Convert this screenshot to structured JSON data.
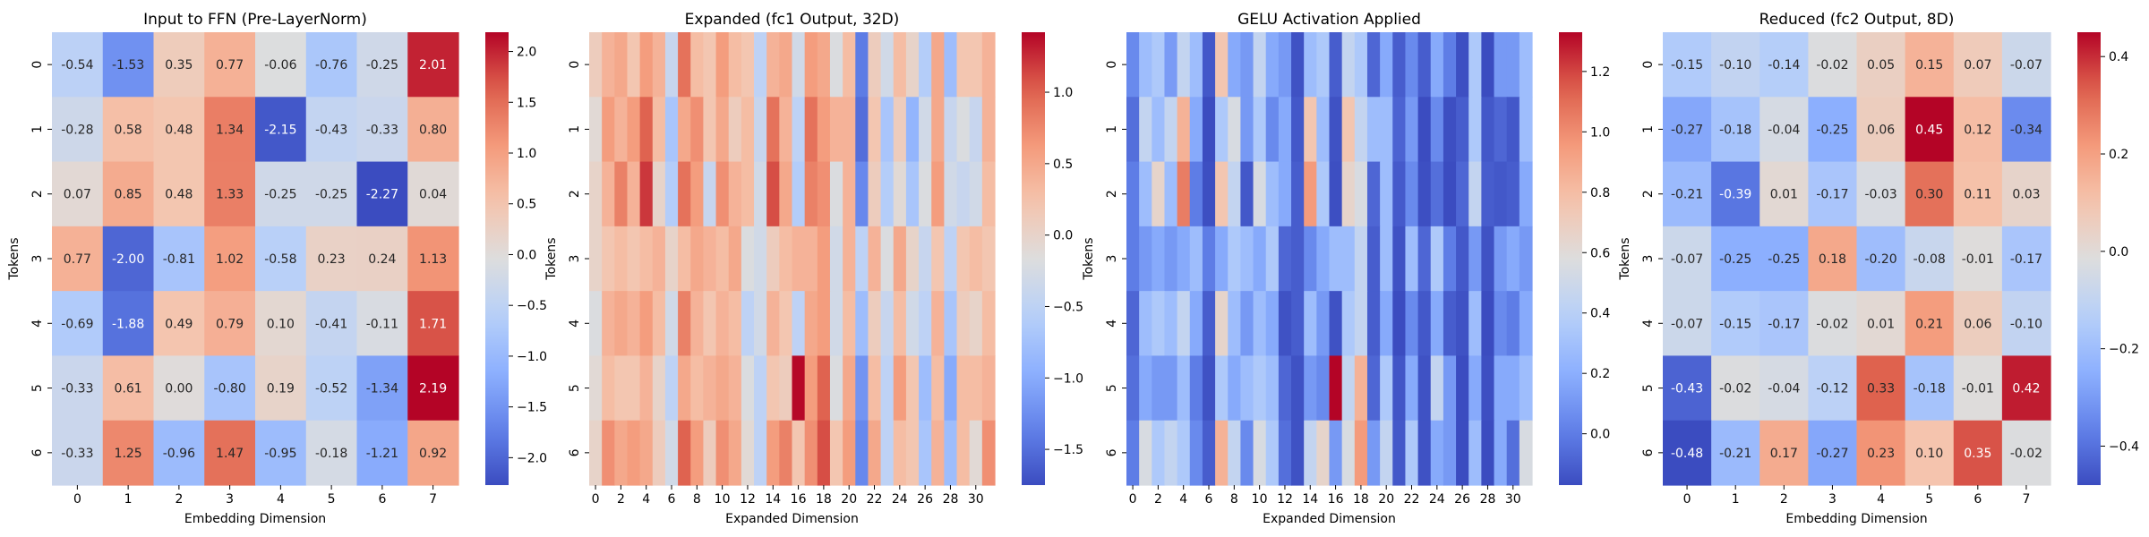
{
  "figure": {
    "background": "#ffffff"
  },
  "chart_data": [
    {
      "type": "heatmap",
      "title": "Input to FFN (Pre-LayerNorm)",
      "xlabel": "Embedding Dimension",
      "ylabel": "Tokens",
      "x_ticks": [
        "0",
        "1",
        "2",
        "3",
        "4",
        "5",
        "6",
        "7"
      ],
      "y_ticks": [
        "0",
        "1",
        "2",
        "3",
        "4",
        "5",
        "6"
      ],
      "annotated": true,
      "vmin": -2.27,
      "vmax": 2.19,
      "colorbar_ticks": [
        "2.0",
        "1.5",
        "1.0",
        "0.5",
        "0.0",
        "−0.5",
        "−1.0",
        "−1.5",
        "−2.0"
      ],
      "values": [
        [
          -0.54,
          -1.53,
          0.35,
          0.77,
          -0.06,
          -0.76,
          -0.25,
          2.01
        ],
        [
          -0.28,
          0.58,
          0.48,
          1.34,
          -2.15,
          -0.43,
          -0.33,
          0.8
        ],
        [
          0.07,
          0.85,
          0.48,
          1.33,
          -0.25,
          -0.25,
          -2.27,
          0.04
        ],
        [
          0.77,
          -2.0,
          -0.81,
          1.02,
          -0.58,
          0.23,
          0.24,
          1.13
        ],
        [
          -0.69,
          -1.88,
          0.49,
          0.79,
          0.1,
          -0.41,
          -0.11,
          1.71
        ],
        [
          -0.33,
          0.61,
          0.0,
          -0.8,
          0.19,
          -0.52,
          -1.34,
          2.19
        ],
        [
          -0.33,
          1.25,
          -0.96,
          1.47,
          -0.95,
          -0.18,
          -1.21,
          0.92
        ]
      ]
    },
    {
      "type": "heatmap",
      "title": "Expanded (fc1 Output, 32D)",
      "xlabel": "Expanded Dimension",
      "ylabel": "Tokens",
      "x_ticks": [
        "0",
        "2",
        "4",
        "6",
        "8",
        "10",
        "12",
        "14",
        "16",
        "18",
        "20",
        "22",
        "24",
        "26",
        "28",
        "30"
      ],
      "y_ticks": [
        "0",
        "1",
        "2",
        "3",
        "4",
        "5",
        "6"
      ],
      "annotated": false,
      "vmin": -1.75,
      "vmax": 1.42,
      "colorbar_ticks": [
        "1.0",
        "0.5",
        "0.0",
        "−0.5",
        "−1.0",
        "−1.5"
      ],
      "values": [
        [
          0.1,
          0.4,
          0.5,
          0.2,
          0.6,
          0.4,
          -0.4,
          0.9,
          0.3,
          0.2,
          0.6,
          0.3,
          0.2,
          -0.5,
          0.4,
          0.5,
          -0.3,
          0.6,
          0.5,
          -0.2,
          0.3,
          -1.4,
          0.1,
          -0.3,
          0.3,
          0.0,
          -0.6,
          0.5,
          -0.8,
          0.2,
          0.2,
          0.4
        ],
        [
          -0.1,
          0.6,
          0.4,
          0.6,
          1.0,
          0.3,
          -0.7,
          0.5,
          0.7,
          0.2,
          0.5,
          0.1,
          0.3,
          -0.4,
          0.9,
          0.4,
          -0.5,
          0.9,
          0.6,
          0.4,
          0.4,
          -1.5,
          0.2,
          -0.7,
          0.1,
          -0.9,
          -0.3,
          0.5,
          -0.4,
          -0.2,
          -0.4,
          0.4
        ],
        [
          0.0,
          0.4,
          0.8,
          0.4,
          1.2,
          0.0,
          -0.6,
          0.9,
          0.6,
          -0.4,
          0.7,
          0.4,
          0.3,
          -0.3,
          1.1,
          0.5,
          -0.6,
          0.8,
          0.7,
          -0.2,
          0.4,
          -1.3,
          0.1,
          -0.6,
          -0.1,
          -0.7,
          -0.2,
          0.6,
          -0.3,
          -0.4,
          -0.3,
          0.3
        ],
        [
          0.0,
          0.2,
          0.3,
          0.2,
          0.3,
          0.4,
          0.0,
          0.3,
          0.5,
          0.4,
          0.3,
          0.5,
          -0.2,
          -0.3,
          0.1,
          0.3,
          0.4,
          0.4,
          0.6,
          -0.3,
          0.4,
          -0.5,
          0.4,
          -0.2,
          0.5,
          0.0,
          -0.4,
          0.2,
          -0.5,
          0.2,
          0.3,
          0.2
        ],
        [
          -0.2,
          0.4,
          0.5,
          0.4,
          0.6,
          0.3,
          -0.3,
          0.8,
          0.4,
          0.2,
          0.4,
          0.3,
          -0.5,
          -0.3,
          0.4,
          0.2,
          -0.5,
          0.5,
          0.6,
          -0.3,
          0.3,
          -0.8,
          0.1,
          -0.4,
          0.3,
          -0.3,
          -0.5,
          0.4,
          -0.7,
          0.1,
          0.0,
          0.3
        ],
        [
          -0.1,
          0.3,
          0.2,
          0.2,
          0.4,
          0.0,
          -0.5,
          0.5,
          0.3,
          0.4,
          0.5,
          0.4,
          -0.2,
          -0.5,
          0.2,
          0.1,
          1.4,
          0.6,
          1.0,
          -0.2,
          0.5,
          -1.2,
          0.3,
          -0.5,
          0.6,
          0.2,
          -0.8,
          0.3,
          -1.0,
          0.3,
          0.3,
          0.4
        ],
        [
          0.0,
          0.7,
          0.5,
          0.6,
          0.5,
          0.1,
          -0.3,
          1.0,
          0.6,
          0.1,
          0.7,
          0.5,
          -0.1,
          -0.5,
          0.6,
          0.8,
          0.2,
          0.7,
          1.1,
          0.2,
          0.6,
          -1.3,
          0.5,
          -0.5,
          0.3,
          0.2,
          -0.7,
          0.4,
          -0.8,
          0.3,
          -0.1,
          0.7
        ]
      ]
    },
    {
      "type": "heatmap",
      "title": "GELU Activation Applied",
      "xlabel": "Expanded Dimension",
      "ylabel": "Tokens",
      "x_ticks": [
        "0",
        "2",
        "4",
        "6",
        "8",
        "10",
        "12",
        "14",
        "16",
        "18",
        "20",
        "22",
        "24",
        "26",
        "28",
        "30"
      ],
      "y_ticks": [
        "0",
        "1",
        "2",
        "3",
        "4",
        "5",
        "6"
      ],
      "annotated": false,
      "vmin": -0.17,
      "vmax": 1.33,
      "colorbar_ticks": [
        "1.2",
        "1.0",
        "0.8",
        "0.6",
        "0.4",
        "0.2",
        "0.0"
      ],
      "values": [
        [
          0.05,
          0.28,
          0.35,
          0.12,
          0.45,
          0.28,
          -0.13,
          0.75,
          0.18,
          0.11,
          0.45,
          0.18,
          0.11,
          -0.15,
          0.28,
          0.35,
          -0.11,
          0.45,
          0.35,
          -0.08,
          0.18,
          -0.11,
          0.05,
          -0.11,
          0.18,
          0.0,
          -0.16,
          0.35,
          -0.17,
          0.11,
          0.11,
          0.28
        ],
        [
          -0.05,
          0.45,
          0.28,
          0.45,
          0.85,
          0.18,
          -0.17,
          0.35,
          0.55,
          0.11,
          0.35,
          0.05,
          0.18,
          -0.13,
          0.75,
          0.28,
          -0.15,
          0.75,
          0.45,
          0.28,
          0.28,
          -0.09,
          0.11,
          -0.17,
          0.05,
          -0.16,
          -0.11,
          0.35,
          -0.13,
          -0.08,
          -0.13,
          0.28
        ],
        [
          0.0,
          0.28,
          0.65,
          0.28,
          1.05,
          0.0,
          -0.16,
          0.75,
          0.45,
          -0.13,
          0.55,
          0.28,
          0.18,
          -0.11,
          0.95,
          0.35,
          -0.16,
          0.65,
          0.55,
          -0.08,
          0.28,
          -0.12,
          0.05,
          -0.16,
          -0.05,
          -0.17,
          -0.08,
          0.45,
          -0.11,
          -0.13,
          -0.11,
          0.18
        ],
        [
          0.0,
          0.11,
          0.18,
          0.11,
          0.18,
          0.28,
          0.0,
          0.18,
          0.35,
          0.28,
          0.18,
          0.35,
          -0.08,
          -0.11,
          0.05,
          0.18,
          0.28,
          0.28,
          0.45,
          -0.11,
          0.28,
          -0.15,
          0.28,
          -0.08,
          0.35,
          0.0,
          -0.13,
          0.11,
          -0.15,
          0.11,
          0.18,
          0.11
        ],
        [
          -0.08,
          0.28,
          0.35,
          0.28,
          0.45,
          0.18,
          -0.11,
          0.65,
          0.28,
          0.11,
          0.28,
          0.18,
          -0.15,
          -0.11,
          0.28,
          0.11,
          -0.15,
          0.35,
          0.45,
          -0.11,
          0.18,
          -0.17,
          0.05,
          -0.13,
          0.18,
          -0.11,
          -0.15,
          0.28,
          -0.17,
          0.05,
          0.0,
          0.18
        ],
        [
          -0.05,
          0.18,
          0.11,
          0.11,
          0.28,
          0.0,
          -0.15,
          0.35,
          0.18,
          0.28,
          0.35,
          0.28,
          -0.08,
          -0.15,
          0.11,
          0.05,
          1.33,
          0.45,
          0.85,
          -0.08,
          0.35,
          -0.14,
          0.18,
          -0.15,
          0.45,
          0.11,
          -0.17,
          0.18,
          -0.16,
          0.18,
          0.18,
          0.28
        ],
        [
          0.0,
          0.55,
          0.35,
          0.45,
          0.35,
          0.05,
          -0.11,
          0.85,
          0.45,
          0.05,
          0.55,
          0.35,
          -0.05,
          -0.15,
          0.45,
          0.65,
          0.11,
          0.55,
          0.95,
          0.11,
          0.45,
          -0.13,
          0.35,
          -0.15,
          0.18,
          0.11,
          -0.17,
          0.28,
          -0.17,
          0.18,
          -0.05,
          0.55
        ]
      ]
    },
    {
      "type": "heatmap",
      "title": "Reduced (fc2 Output, 8D)",
      "xlabel": "Embedding Dimension",
      "ylabel": "Tokens",
      "x_ticks": [
        "0",
        "1",
        "2",
        "3",
        "4",
        "5",
        "6",
        "7"
      ],
      "y_ticks": [
        "0",
        "1",
        "2",
        "3",
        "4",
        "5",
        "6"
      ],
      "annotated": true,
      "vmin": -0.48,
      "vmax": 0.45,
      "colorbar_ticks": [
        "0.4",
        "0.2",
        "0.0",
        "−0.2",
        "−0.4"
      ],
      "values": [
        [
          -0.15,
          -0.1,
          -0.14,
          -0.02,
          0.05,
          0.15,
          0.07,
          -0.07
        ],
        [
          -0.27,
          -0.18,
          -0.04,
          -0.25,
          0.06,
          0.45,
          0.12,
          -0.34
        ],
        [
          -0.21,
          -0.39,
          0.01,
          -0.17,
          -0.03,
          0.3,
          0.11,
          0.03
        ],
        [
          -0.07,
          -0.25,
          -0.25,
          0.18,
          -0.2,
          -0.08,
          -0.01,
          -0.17
        ],
        [
          -0.07,
          -0.15,
          -0.17,
          -0.02,
          0.01,
          0.21,
          0.06,
          -0.1
        ],
        [
          -0.43,
          -0.02,
          -0.04,
          -0.12,
          0.33,
          -0.18,
          -0.01,
          0.42
        ],
        [
          -0.48,
          -0.21,
          0.17,
          -0.27,
          0.23,
          0.1,
          0.35,
          -0.02
        ]
      ]
    }
  ]
}
